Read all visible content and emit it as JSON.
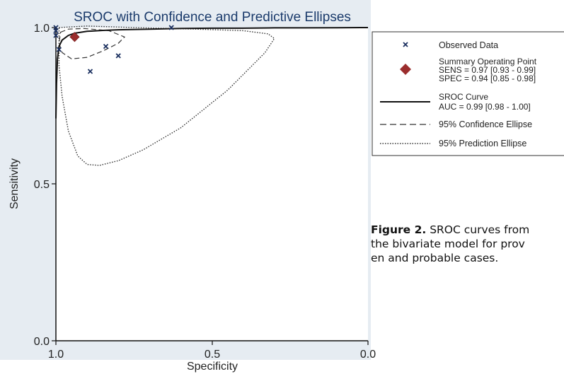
{
  "colors": {
    "background": "#ffffff",
    "plot_area": "#e6ecf2",
    "title": "#1a3a6b",
    "text": "#222222",
    "summary_point": "#9b2d2d",
    "observed_marker": "#1a2f5f",
    "curve": "#111111"
  },
  "legend": {
    "observed": "Observed Data",
    "summary_l1": "Summary Operating Point",
    "summary_l2": "SENS = 0.97 [0.93 - 0.99]",
    "summary_l3": "SPEC = 0.94 [0.85 - 0.98]",
    "sroc_l1": "SROC Curve",
    "sroc_l2": "AUC = 0.99 [0.98 - 1.00]",
    "confidence": "95% Confidence Ellipse",
    "prediction": "95% Prediction Ellipse"
  },
  "caption": {
    "label": "Figure 2.",
    "line1": " SROC curves from",
    "line2": "the bivariate model for prov",
    "line3": "en and probable cases."
  },
  "chart_data": {
    "type": "scatter",
    "title": "SROC with Confidence and Predictive Ellipses",
    "xlabel": "Specificity",
    "ylabel": "Sensitivity",
    "xlim": [
      1.0,
      0.0
    ],
    "ylim": [
      0.0,
      1.0
    ],
    "x_reversed": true,
    "xticks": [
      "1.0",
      "0.5",
      "0.0"
    ],
    "yticks": [
      "0.0",
      "0.5",
      "1.0"
    ],
    "grid": false,
    "legend_position": "right",
    "series": [
      {
        "name": "Observed Data",
        "marker": "x",
        "points": [
          {
            "x": 1.0,
            "y": 1.0
          },
          {
            "x": 1.0,
            "y": 0.99
          },
          {
            "x": 1.0,
            "y": 0.975
          },
          {
            "x": 0.99,
            "y": 0.93
          },
          {
            "x": 0.84,
            "y": 0.94
          },
          {
            "x": 0.8,
            "y": 0.91
          },
          {
            "x": 0.89,
            "y": 0.86
          },
          {
            "x": 0.63,
            "y": 1.0
          }
        ]
      },
      {
        "name": "Summary Operating Point",
        "marker": "diamond",
        "points": [
          {
            "x": 0.94,
            "y": 0.97
          }
        ],
        "sens": 0.97,
        "sens_ci": [
          0.93,
          0.99
        ],
        "spec": 0.94,
        "spec_ci": [
          0.85,
          0.98
        ]
      },
      {
        "name": "SROC Curve",
        "line": "solid",
        "auc": 0.99,
        "auc_ci": [
          0.98,
          1.0
        ],
        "points": [
          {
            "x": 1.0,
            "y": 0.71
          },
          {
            "x": 0.998,
            "y": 0.82
          },
          {
            "x": 0.995,
            "y": 0.9
          },
          {
            "x": 0.99,
            "y": 0.94
          },
          {
            "x": 0.98,
            "y": 0.96
          },
          {
            "x": 0.96,
            "y": 0.975
          },
          {
            "x": 0.94,
            "y": 0.982
          },
          {
            "x": 0.9,
            "y": 0.988
          },
          {
            "x": 0.85,
            "y": 0.991
          },
          {
            "x": 0.8,
            "y": 0.993
          },
          {
            "x": 0.7,
            "y": 0.995
          },
          {
            "x": 0.6,
            "y": 0.997
          },
          {
            "x": 0.5,
            "y": 0.998
          },
          {
            "x": 0.4,
            "y": 0.998
          },
          {
            "x": 0.3,
            "y": 0.999
          },
          {
            "x": 0.2,
            "y": 0.999
          },
          {
            "x": 0.1,
            "y": 0.9995
          },
          {
            "x": 0.0,
            "y": 1.0
          }
        ]
      },
      {
        "name": "95% Confidence Ellipse",
        "line": "dashed",
        "points": [
          {
            "x": 0.985,
            "y": 0.985
          },
          {
            "x": 0.96,
            "y": 0.995
          },
          {
            "x": 0.91,
            "y": 0.997
          },
          {
            "x": 0.83,
            "y": 0.99
          },
          {
            "x": 0.78,
            "y": 0.97
          },
          {
            "x": 0.8,
            "y": 0.95
          },
          {
            "x": 0.85,
            "y": 0.925
          },
          {
            "x": 0.9,
            "y": 0.905
          },
          {
            "x": 0.95,
            "y": 0.9
          },
          {
            "x": 0.98,
            "y": 0.92
          },
          {
            "x": 0.99,
            "y": 0.95
          },
          {
            "x": 0.985,
            "y": 0.985
          }
        ]
      },
      {
        "name": "95% Prediction Ellipse",
        "line": "dotted",
        "points": [
          {
            "x": 0.99,
            "y": 1.0
          },
          {
            "x": 0.9,
            "y": 1.005
          },
          {
            "x": 0.75,
            "y": 1.0
          },
          {
            "x": 0.55,
            "y": 0.995
          },
          {
            "x": 0.4,
            "y": 0.99
          },
          {
            "x": 0.32,
            "y": 0.98
          },
          {
            "x": 0.3,
            "y": 0.965
          },
          {
            "x": 0.33,
            "y": 0.92
          },
          {
            "x": 0.45,
            "y": 0.8
          },
          {
            "x": 0.6,
            "y": 0.68
          },
          {
            "x": 0.72,
            "y": 0.61
          },
          {
            "x": 0.8,
            "y": 0.575
          },
          {
            "x": 0.86,
            "y": 0.56
          },
          {
            "x": 0.9,
            "y": 0.563
          },
          {
            "x": 0.93,
            "y": 0.59
          },
          {
            "x": 0.96,
            "y": 0.67
          },
          {
            "x": 0.98,
            "y": 0.78
          },
          {
            "x": 0.99,
            "y": 0.88
          },
          {
            "x": 0.99,
            "y": 0.95
          },
          {
            "x": 0.99,
            "y": 1.0
          }
        ]
      }
    ]
  }
}
